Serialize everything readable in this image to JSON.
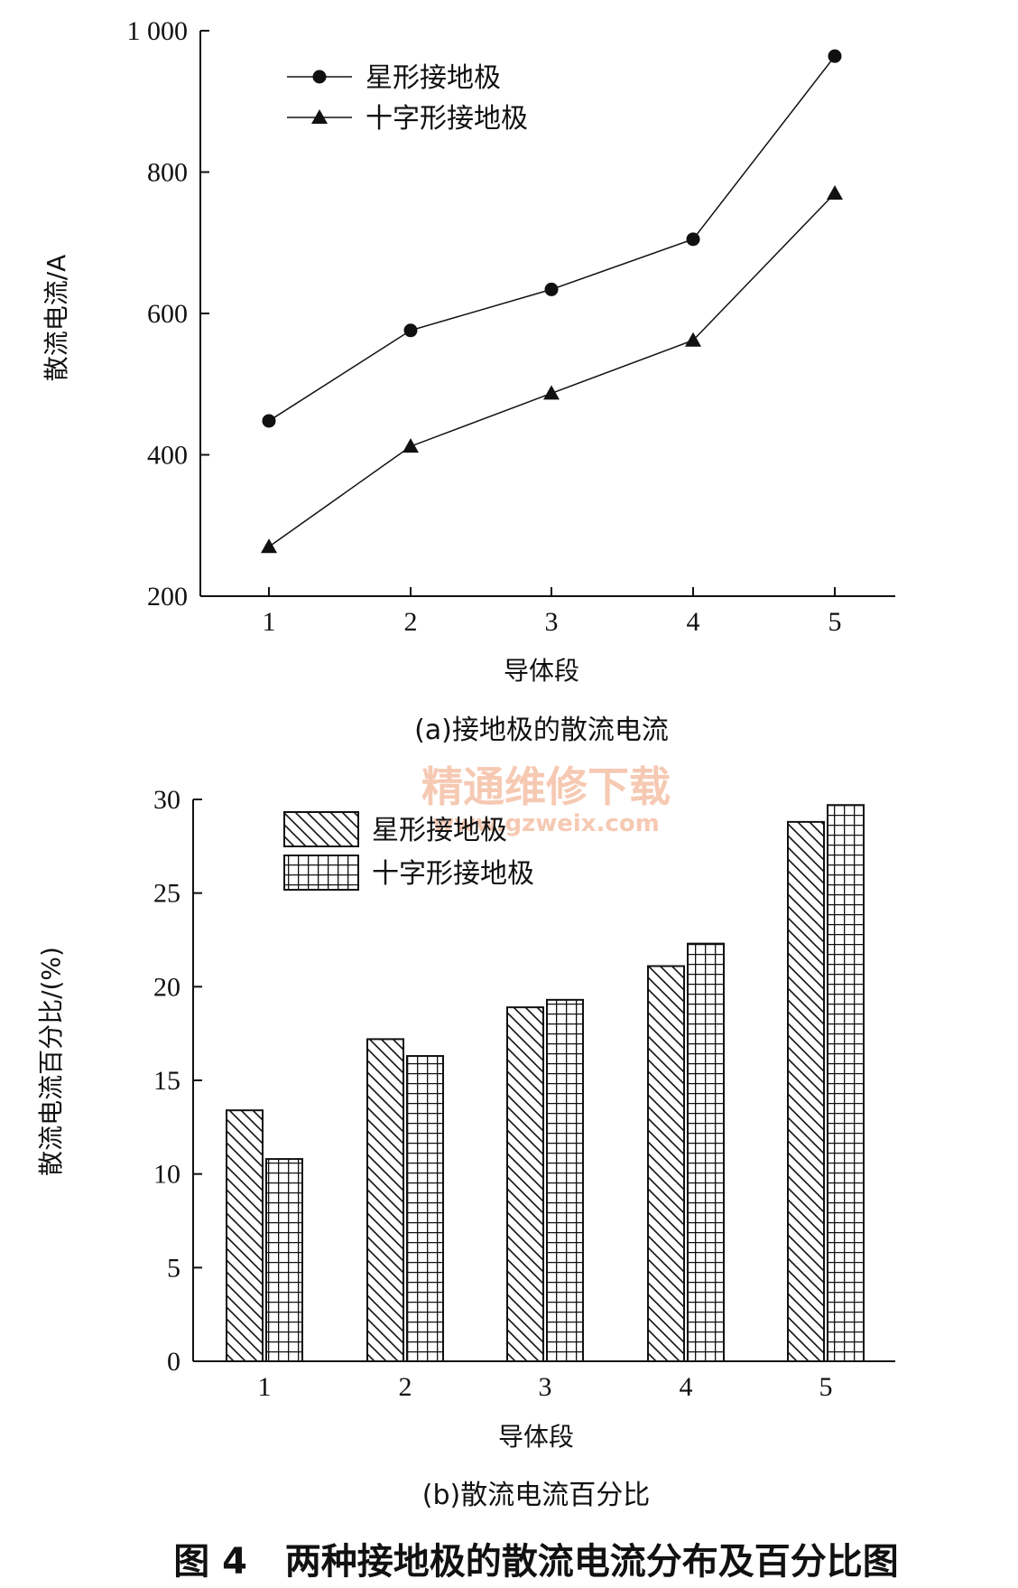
{
  "figure_title": "图 4   两种接地极的散流电流分布及百分比图",
  "watermark": {
    "text": "精通维修下载",
    "url": "www.gzweix.com"
  },
  "chart_data": [
    {
      "type": "line",
      "caption": "(a)接地极的散流电流",
      "xlabel": "导体段",
      "ylabel": "散流电流/A",
      "categories": [
        "1",
        "2",
        "3",
        "4",
        "5"
      ],
      "ylim": [
        200,
        1000
      ],
      "yticks": [
        "200",
        "400",
        "600",
        "800",
        "1 000"
      ],
      "ytick_values": [
        200,
        400,
        600,
        800,
        1000
      ],
      "legend_position": "top-left",
      "grid": false,
      "series": [
        {
          "name": "星形接地极",
          "marker": "circle",
          "values": [
            448,
            576,
            634,
            705,
            964
          ]
        },
        {
          "name": "十字形接地极",
          "marker": "triangle",
          "values": [
            270,
            412,
            487,
            562,
            770
          ]
        }
      ]
    },
    {
      "type": "bar",
      "caption": "(b)散流电流百分比",
      "xlabel": "导体段",
      "ylabel": "散流电流百分比/(%)",
      "categories": [
        "1",
        "2",
        "3",
        "4",
        "5"
      ],
      "ylim": [
        0,
        30
      ],
      "yticks": [
        "0",
        "5",
        "10",
        "15",
        "20",
        "25",
        "30"
      ],
      "ytick_values": [
        0,
        5,
        10,
        15,
        20,
        25,
        30
      ],
      "legend_position": "top-left",
      "grid": false,
      "series": [
        {
          "name": "星形接地极",
          "pattern": "diagonal-hatch",
          "values": [
            13.4,
            17.2,
            18.9,
            21.1,
            28.8
          ]
        },
        {
          "name": "十字形接地极",
          "pattern": "grid-hatch",
          "values": [
            10.8,
            16.3,
            19.3,
            22.3,
            29.7
          ]
        }
      ]
    }
  ]
}
